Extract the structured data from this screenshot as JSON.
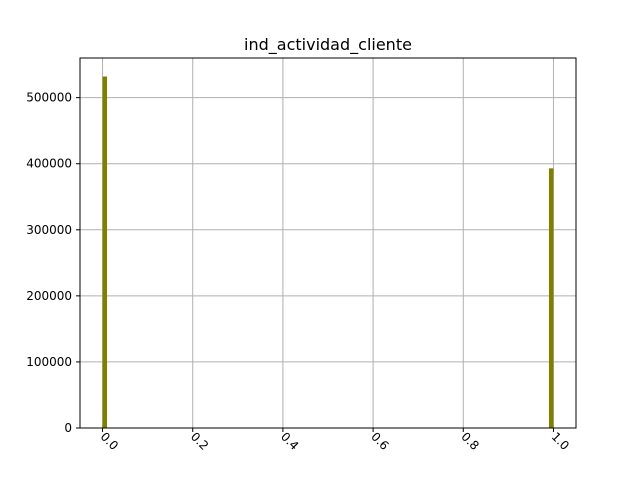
{
  "chart_data": {
    "type": "bar",
    "title": "ind_actividad_cliente",
    "xlabel": "",
    "ylabel": "",
    "xlim": [
      -0.05,
      1.05
    ],
    "ylim": [
      0,
      560000
    ],
    "grid": true,
    "bars": [
      {
        "x_start": 0.0,
        "x_end": 0.01,
        "value": 532000
      },
      {
        "x_start": 0.99,
        "x_end": 1.0,
        "value": 393000
      }
    ],
    "x_ticks": [
      {
        "value": 0.0,
        "label": "0.0"
      },
      {
        "value": 0.2,
        "label": "0.2"
      },
      {
        "value": 0.4,
        "label": "0.4"
      },
      {
        "value": 0.6,
        "label": "0.6"
      },
      {
        "value": 0.8,
        "label": "0.8"
      },
      {
        "value": 1.0,
        "label": "1.0"
      }
    ],
    "y_ticks": [
      {
        "value": 0,
        "label": "0"
      },
      {
        "value": 100000,
        "label": "100000"
      },
      {
        "value": 200000,
        "label": "200000"
      },
      {
        "value": 300000,
        "label": "300000"
      },
      {
        "value": 400000,
        "label": "400000"
      },
      {
        "value": 500000,
        "label": "500000"
      }
    ],
    "x_tick_rotation_deg": 45,
    "colors": {
      "bar": "#808000",
      "grid": "#b0b0b0",
      "axis": "#000000"
    }
  }
}
